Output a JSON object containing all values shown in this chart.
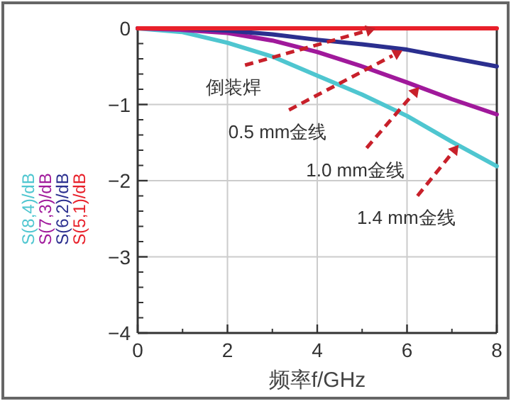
{
  "chart_data": {
    "type": "line",
    "xlabel": "频率f/GHz",
    "x": [
      0,
      1,
      2,
      3,
      4,
      5,
      6,
      7,
      8
    ],
    "series": [
      {
        "name": "S(5,1)/dB",
        "color": "#e8202a",
        "values": [
          0,
          0,
          0,
          0,
          0,
          0,
          0,
          0,
          0
        ]
      },
      {
        "name": "S(6,2)/dB",
        "color": "#2b2f8f",
        "values": [
          0,
          0,
          -0.03,
          -0.08,
          -0.15,
          -0.21,
          -0.28,
          -0.39,
          -0.5
        ]
      },
      {
        "name": "S(7,3)/dB",
        "color": "#a0199b",
        "values": [
          0,
          -0.02,
          -0.06,
          -0.16,
          -0.31,
          -0.5,
          -0.71,
          -0.93,
          -1.13
        ]
      },
      {
        "name": "S(8,4)/dB",
        "color": "#4fc6d0",
        "values": [
          0,
          -0.05,
          -0.19,
          -0.37,
          -0.62,
          -0.87,
          -1.15,
          -1.49,
          -1.81
        ]
      }
    ],
    "xlim": [
      0,
      8
    ],
    "xticks": [
      0,
      2,
      4,
      6,
      8
    ],
    "ylim": [
      -4,
      0
    ],
    "yticks": [
      0,
      {
        "value": -1,
        "label": "−1"
      },
      {
        "value": -2,
        "label": "−2"
      },
      {
        "value": -3,
        "label": "−3"
      },
      {
        "value": -4,
        "label": "−4"
      }
    ],
    "grid": true,
    "annotations": [
      {
        "text": "倒装焊",
        "x": 5.3,
        "y": 0
      },
      {
        "text": "0.5 mm金线",
        "x": 5.9,
        "y": -0.29
      },
      {
        "text": "1.0 mm金线",
        "x": 6.27,
        "y": -0.77
      },
      {
        "text": "1.4 mm金线",
        "x": 7.15,
        "y": -1.53
      }
    ]
  }
}
